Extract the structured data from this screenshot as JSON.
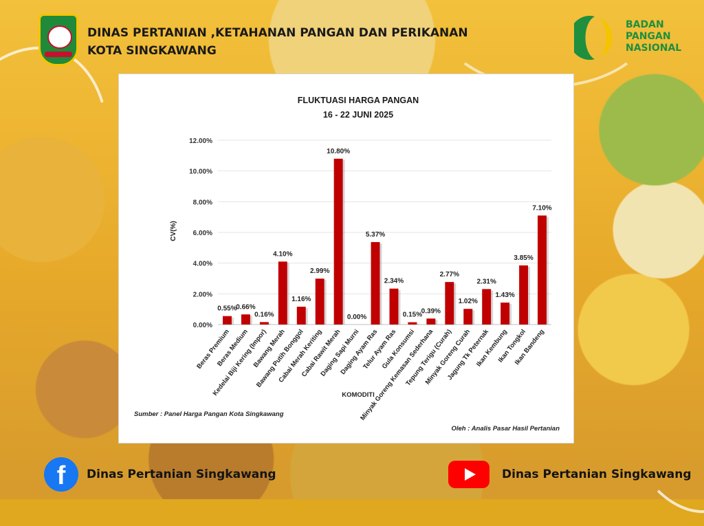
{
  "header": {
    "title_line1": "DINAS PERTANIAN ,KETAHANAN PANGAN DAN PERIKANAN",
    "title_line2": "KOTA SINGKAWANG",
    "logo_right_lines": [
      "BADAN",
      "PANGAN",
      "NASIONAL"
    ]
  },
  "chart_data": {
    "type": "bar",
    "title": "FLUKTUASI HARGA PANGAN",
    "subtitle": "16 - 22 JUNI 2025",
    "xlabel": "KOMODITI",
    "ylabel": "CV(%)",
    "ylim": [
      0,
      12
    ],
    "yticks": [
      "0.00%",
      "2.00%",
      "4.00%",
      "6.00%",
      "8.00%",
      "10.00%",
      "12.00%"
    ],
    "grid": true,
    "bar_color": "#c00000",
    "categories": [
      "Beras Premium",
      "Beras Medium",
      "Kedelai Biji Kering (Impor)",
      "Bawang Merah",
      "Bawang Putih Bonggol",
      "Cabai Merah Keriting",
      "Cabai Rawit Merah",
      "Daging Sapi Murni",
      "Daging Ayam Ras",
      "Telur Ayam Ras",
      "Gula Konsumsi",
      "Minyak Goreng Kemasan Sederhana",
      "Tepung Terigu (Curah)",
      "Minyak Goreng Curah",
      "Jagung Tk Peternak",
      "Ikan Kembung",
      "Ikan Tongkol",
      "Ikan Bandeng"
    ],
    "values": [
      0.55,
      0.66,
      0.16,
      4.1,
      1.16,
      2.99,
      10.8,
      0.0,
      5.37,
      2.34,
      0.15,
      0.39,
      2.77,
      1.02,
      2.31,
      1.43,
      3.85,
      7.1
    ],
    "data_labels": [
      "0.55%",
      "0.66%",
      "0.16%",
      "4.10%",
      "1.16%",
      "2.99%",
      "10.80%",
      "0.00%",
      "5.37%",
      "2.34%",
      "0.15%",
      "0.39%",
      "2.77%",
      "1.02%",
      "2.31%",
      "1.43%",
      "3.85%",
      "7.10%"
    ]
  },
  "notes": {
    "source": "Sumber : Panel Harga Pangan Kota Singkawang",
    "author": "Oleh : Analis Pasar Hasil Pertanian"
  },
  "footer": {
    "facebook_icon": "facebook-icon",
    "facebook_label": "Dinas Pertanian Singkawang",
    "youtube_icon": "youtube-icon",
    "youtube_label": "Dinas Pertanian Singkawang"
  }
}
